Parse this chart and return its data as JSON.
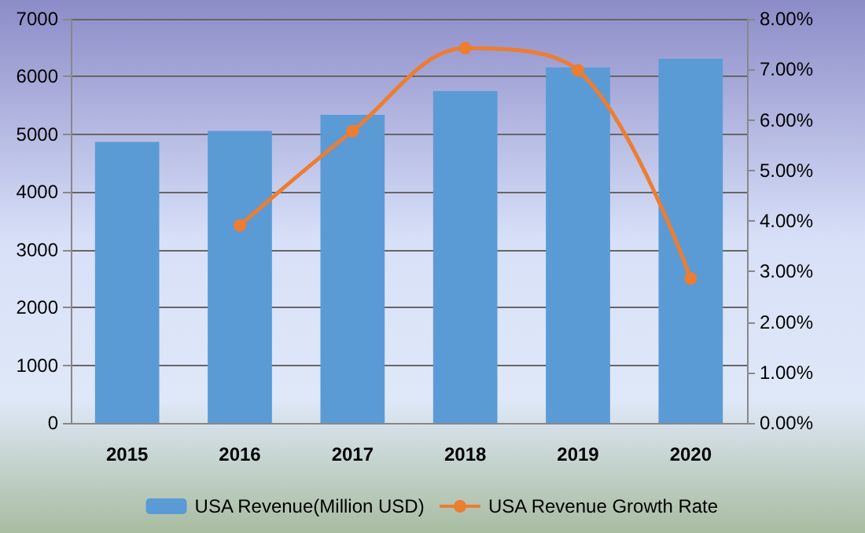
{
  "chart_data": {
    "type": "bar",
    "categories": [
      "2015",
      "2016",
      "2017",
      "2018",
      "2019",
      "2020"
    ],
    "series": [
      {
        "name": "USA Revenue(Million USD)",
        "color": "#5b9bd5",
        "values": [
          4870,
          5060,
          5340,
          5750,
          6160,
          6310
        ]
      },
      {
        "name": "USA Revenue Growth Rate",
        "type": "line",
        "axis": "y2",
        "color": "#ed7d31",
        "marker": "circle",
        "values": [
          null,
          3.91,
          5.78,
          7.42,
          6.98,
          2.86
        ]
      }
    ],
    "ylim": [
      0,
      7000
    ],
    "yticks": [
      0,
      1000,
      2000,
      3000,
      4000,
      5000,
      6000,
      7000
    ],
    "y2lim": [
      0,
      8
    ],
    "y2ticks": [
      {
        "value": 0,
        "label": "0.00%"
      },
      {
        "value": 1,
        "label": "1.00%"
      },
      {
        "value": 2,
        "label": "2.00%"
      },
      {
        "value": 3,
        "label": "3.00%"
      },
      {
        "value": 4,
        "label": "4.00%"
      },
      {
        "value": 5,
        "label": "5.00%"
      },
      {
        "value": 6,
        "label": "6.00%"
      },
      {
        "value": 7,
        "label": "7.00%"
      },
      {
        "value": 8,
        "label": "8.00%"
      }
    ],
    "grid": "y",
    "legend": "bottom"
  }
}
